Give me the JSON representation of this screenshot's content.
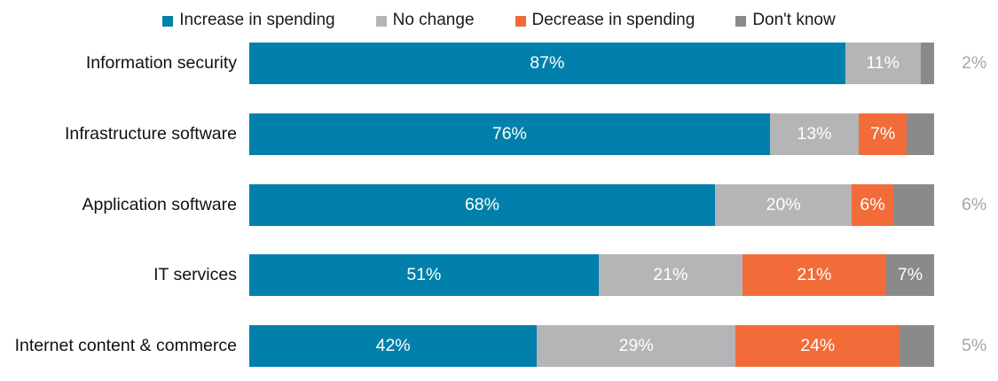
{
  "colors": {
    "increase": "#0080AB",
    "no_change": "#B5B5B7",
    "decrease": "#F26C3A",
    "dont_know": "#8A8A8D",
    "outside_label_text": "#A6A6A9",
    "inside_label_text": "#FFFFFF",
    "category_text": "#111111"
  },
  "legend": {
    "items": [
      {
        "label": "Increase in spending",
        "color": "#0080AB"
      },
      {
        "label": "No change",
        "color": "#B5B5B7"
      },
      {
        "label": "Decrease in spending",
        "color": "#F26C3A"
      },
      {
        "label": "Don't know",
        "color": "#8A8A8D"
      }
    ]
  },
  "chart_data": {
    "type": "bar",
    "orientation": "horizontal",
    "stacked": true,
    "unit": "%",
    "axis_range": [
      0,
      100
    ],
    "grid": false,
    "legend_position": "top",
    "title": "",
    "categories": [
      "Information security",
      "Infrastructure software",
      "Application software",
      "IT services",
      "Internet content & commerce"
    ],
    "series": [
      {
        "name": "Increase in spending",
        "color": "#0080AB",
        "values": [
          87,
          76,
          68,
          51,
          42
        ],
        "labels": [
          {
            "text": "87%",
            "placement": "inside"
          },
          {
            "text": "76%",
            "placement": "inside"
          },
          {
            "text": "68%",
            "placement": "inside"
          },
          {
            "text": "51%",
            "placement": "inside"
          },
          {
            "text": "42%",
            "placement": "inside"
          }
        ]
      },
      {
        "name": "No change",
        "color": "#B5B5B7",
        "values": [
          11,
          13,
          20,
          21,
          29
        ],
        "labels": [
          {
            "text": "11%",
            "placement": "inside"
          },
          {
            "text": "13%",
            "placement": "inside"
          },
          {
            "text": "20%",
            "placement": "inside"
          },
          {
            "text": "21%",
            "placement": "inside"
          },
          {
            "text": "29%",
            "placement": "inside"
          }
        ]
      },
      {
        "name": "Decrease in spending",
        "color": "#F26C3A",
        "values": [
          0,
          7,
          6,
          21,
          24
        ],
        "labels": [
          {
            "text": "",
            "placement": "none"
          },
          {
            "text": "7%",
            "placement": "inside"
          },
          {
            "text": "6%",
            "placement": "inside"
          },
          {
            "text": "21%",
            "placement": "inside"
          },
          {
            "text": "24%",
            "placement": "inside"
          }
        ]
      },
      {
        "name": "Don't know",
        "color": "#8A8A8D",
        "values": [
          2,
          4,
          6,
          7,
          5
        ],
        "labels": [
          {
            "text": "2%",
            "placement": "outside"
          },
          {
            "text": "",
            "placement": "none"
          },
          {
            "text": "6%",
            "placement": "outside"
          },
          {
            "text": "7%",
            "placement": "inside"
          },
          {
            "text": "5%",
            "placement": "outside"
          }
        ]
      }
    ]
  }
}
